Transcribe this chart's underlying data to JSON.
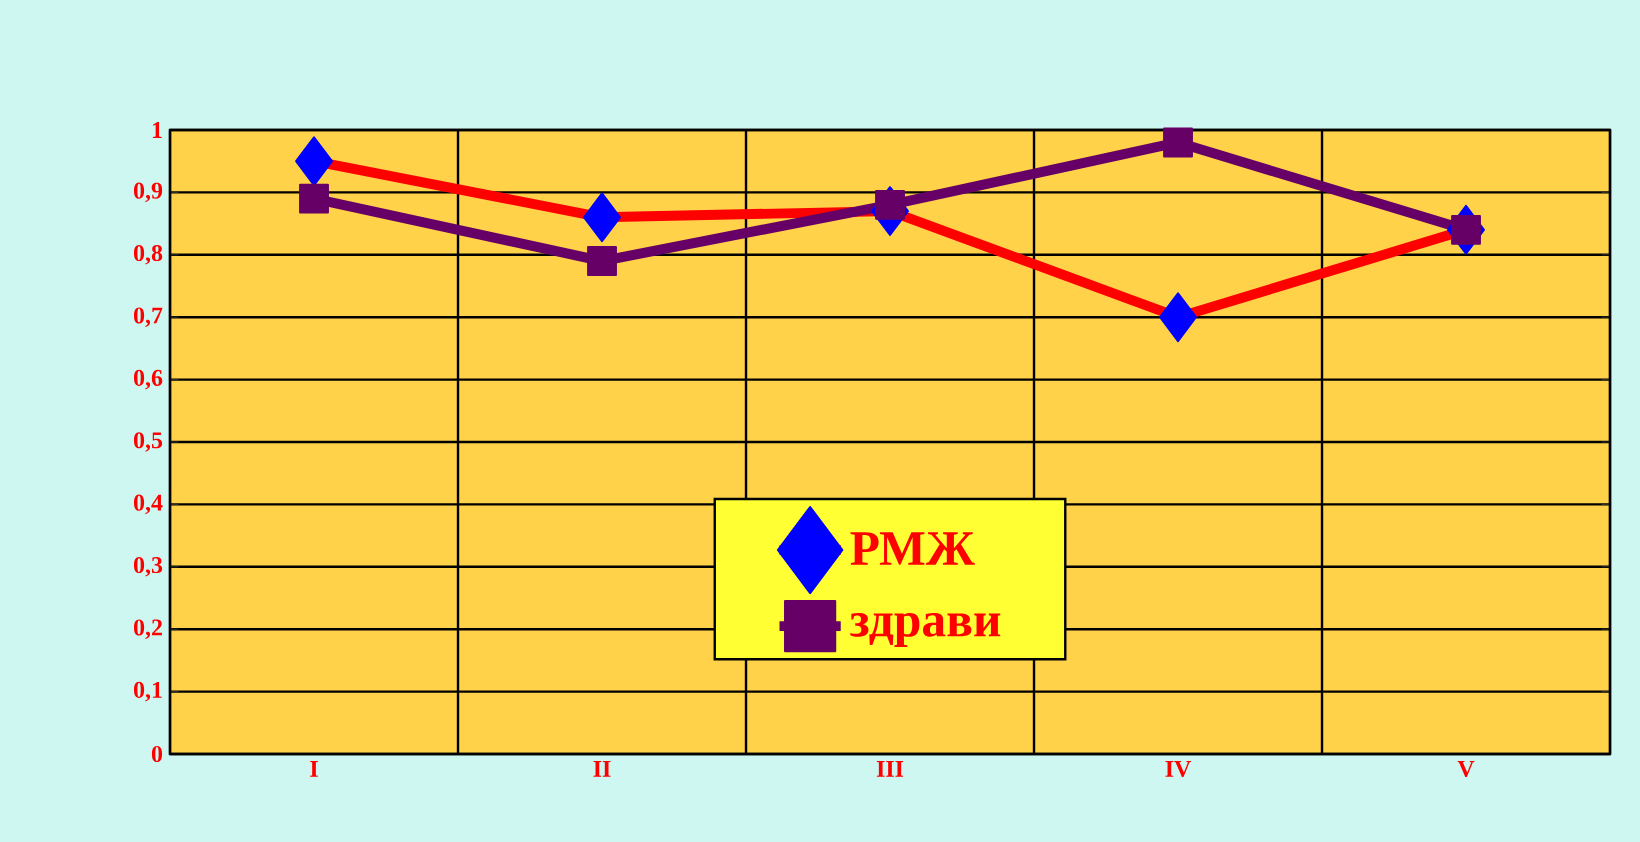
{
  "chart_data": {
    "type": "line",
    "categories": [
      "I",
      "II",
      "III",
      "IV",
      "V"
    ],
    "series": [
      {
        "name": "РМЖ",
        "color": "#ff0000",
        "marker": "diamond",
        "values": [
          0.95,
          0.86,
          0.87,
          0.7,
          0.84
        ]
      },
      {
        "name": "здрави",
        "color": "#660066",
        "marker": "square",
        "values": [
          0.89,
          0.79,
          0.88,
          0.98,
          0.84
        ]
      }
    ],
    "ylim": [
      0,
      1
    ],
    "yticks": [
      0,
      {
        "value": 0.1,
        "label": "0,1"
      },
      {
        "value": 0.2,
        "label": "0,2"
      },
      {
        "value": 0.3,
        "label": "0,3"
      },
      {
        "value": 0.4,
        "label": "0,4"
      },
      {
        "value": 0.5,
        "label": "0,5"
      },
      {
        "value": 0.6,
        "label": "0,6"
      },
      {
        "value": 0.7,
        "label": "0,7"
      },
      {
        "value": 0.8,
        "label": "0,8"
      },
      {
        "value": 0.9,
        "label": "0,9"
      },
      1
    ],
    "grid": true,
    "legend": "bottom",
    "line_style": "solid"
  }
}
